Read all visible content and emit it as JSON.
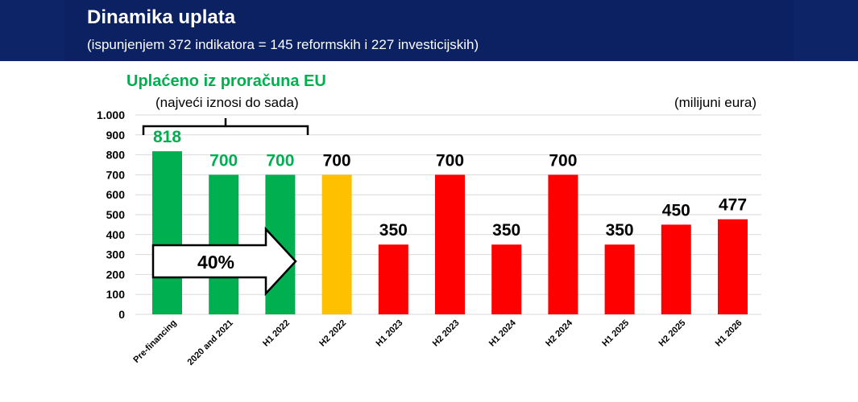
{
  "header": {
    "title": "Dinamika uplata",
    "subtitle": "(ispunjenjem 372 indikatora = 145 reformskih i 227 investicijskih)"
  },
  "chart_data": {
    "type": "bar",
    "categories": [
      "Pre-financing",
      "2020 and 2021",
      "H1 2022",
      "H2 2022",
      "H1 2023",
      "H2 2023",
      "H1 2024",
      "H2 2024",
      "H1 2025",
      "H2 2025",
      "H1 2026"
    ],
    "values": [
      818,
      700,
      700,
      700,
      350,
      700,
      350,
      700,
      350,
      450,
      477
    ],
    "value_labels": [
      "818",
      "700",
      "700",
      "700",
      "350",
      "700",
      "350",
      "700",
      "350",
      "450",
      "477"
    ],
    "bar_colors": [
      "#00b050",
      "#00b050",
      "#00b050",
      "#ffc000",
      "#ff0000",
      "#ff0000",
      "#ff0000",
      "#ff0000",
      "#ff0000",
      "#ff0000",
      "#ff0000"
    ],
    "label_colors": [
      "#00b050",
      "#00b050",
      "#00b050",
      "#000000",
      "#000000",
      "#000000",
      "#000000",
      "#000000",
      "#000000",
      "#000000",
      "#000000"
    ],
    "ylim": [
      0,
      1000
    ],
    "yticks": [
      0,
      100,
      200,
      300,
      400,
      500,
      600,
      700,
      800,
      900,
      1000
    ],
    "ytick_labels": [
      "0",
      "100",
      "200",
      "300",
      "400",
      "500",
      "600",
      "700",
      "800",
      "900",
      "1.000"
    ],
    "unit": "(milijuni eura)",
    "grid": true,
    "annotations": {
      "paid_title": "Uplaćeno iz proračuna EU",
      "paid_subtitle": "(najveći iznosi do sada)",
      "arrow_label": "40%"
    }
  }
}
